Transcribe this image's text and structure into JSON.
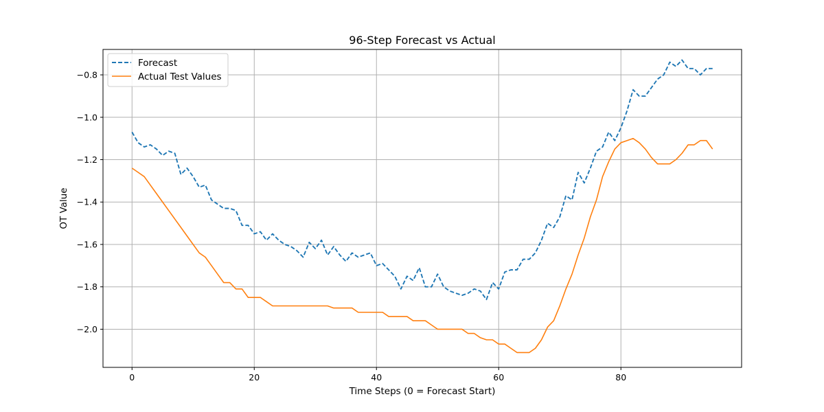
{
  "chart_data": {
    "type": "line",
    "title": "96-Step Forecast vs Actual",
    "xlabel": "Time Steps (0 = Forecast Start)",
    "ylabel": "OT Value",
    "xlim": [
      -4.75,
      99.75
    ],
    "ylim": [
      -2.18,
      -0.68
    ],
    "xticks": [
      0,
      20,
      40,
      60,
      80
    ],
    "yticks": [
      -2.0,
      -1.8,
      -1.6,
      -1.4,
      -1.2,
      -1.0,
      -0.8
    ],
    "grid": true,
    "legend_position": "top-left",
    "series": [
      {
        "name": "Forecast",
        "color": "#1f77b4",
        "style": "dashed",
        "values": [
          -1.07,
          -1.12,
          -1.14,
          -1.13,
          -1.15,
          -1.18,
          -1.16,
          -1.17,
          -1.27,
          -1.24,
          -1.28,
          -1.33,
          -1.32,
          -1.39,
          -1.41,
          -1.43,
          -1.43,
          -1.44,
          -1.51,
          -1.51,
          -1.55,
          -1.54,
          -1.58,
          -1.55,
          -1.58,
          -1.6,
          -1.61,
          -1.63,
          -1.66,
          -1.59,
          -1.62,
          -1.58,
          -1.65,
          -1.61,
          -1.65,
          -1.68,
          -1.64,
          -1.66,
          -1.65,
          -1.64,
          -1.7,
          -1.69,
          -1.72,
          -1.75,
          -1.81,
          -1.75,
          -1.77,
          -1.71,
          -1.8,
          -1.8,
          -1.74,
          -1.8,
          -1.82,
          -1.83,
          -1.84,
          -1.83,
          -1.81,
          -1.82,
          -1.86,
          -1.78,
          -1.81,
          -1.73,
          -1.72,
          -1.72,
          -1.67,
          -1.67,
          -1.64,
          -1.58,
          -1.5,
          -1.52,
          -1.47,
          -1.37,
          -1.39,
          -1.26,
          -1.31,
          -1.24,
          -1.16,
          -1.14,
          -1.07,
          -1.11,
          -1.05,
          -0.97,
          -0.87,
          -0.9,
          -0.9,
          -0.86,
          -0.82,
          -0.8,
          -0.74,
          -0.76,
          -0.73,
          -0.77,
          -0.77,
          -0.8,
          -0.77,
          -0.77
        ]
      },
      {
        "name": "Actual Test Values",
        "color": "#ff7f0e",
        "style": "solid",
        "values": [
          -1.24,
          -1.26,
          -1.28,
          -1.32,
          -1.36,
          -1.4,
          -1.44,
          -1.48,
          -1.52,
          -1.56,
          -1.6,
          -1.64,
          -1.66,
          -1.7,
          -1.74,
          -1.78,
          -1.78,
          -1.81,
          -1.81,
          -1.85,
          -1.85,
          -1.85,
          -1.87,
          -1.89,
          -1.89,
          -1.89,
          -1.89,
          -1.89,
          -1.89,
          -1.89,
          -1.89,
          -1.89,
          -1.89,
          -1.9,
          -1.9,
          -1.9,
          -1.9,
          -1.92,
          -1.92,
          -1.92,
          -1.92,
          -1.92,
          -1.94,
          -1.94,
          -1.94,
          -1.94,
          -1.96,
          -1.96,
          -1.96,
          -1.98,
          -2.0,
          -2.0,
          -2.0,
          -2.0,
          -2.0,
          -2.02,
          -2.02,
          -2.04,
          -2.05,
          -2.05,
          -2.07,
          -2.07,
          -2.09,
          -2.11,
          -2.11,
          -2.11,
          -2.09,
          -2.05,
          -1.99,
          -1.96,
          -1.89,
          -1.81,
          -1.74,
          -1.65,
          -1.57,
          -1.47,
          -1.39,
          -1.28,
          -1.21,
          -1.15,
          -1.12,
          -1.11,
          -1.1,
          -1.12,
          -1.15,
          -1.19,
          -1.22,
          -1.22,
          -1.22,
          -1.2,
          -1.17,
          -1.13,
          -1.13,
          -1.11,
          -1.11,
          -1.15
        ]
      }
    ]
  }
}
